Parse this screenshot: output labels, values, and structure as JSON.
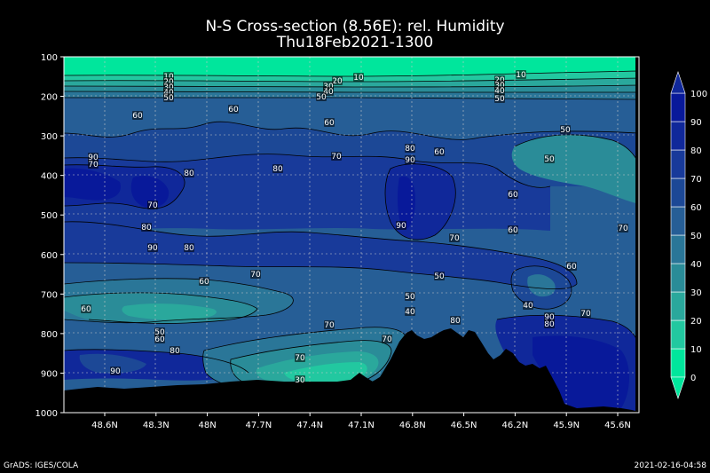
{
  "chart_data": {
    "type": "heatmap",
    "title": "N-S Cross-section (8.56E): rel. Humidity",
    "subtitle": "Thu18Feb2021-1300",
    "x_ticks": [
      "48.6N",
      "48.3N",
      "48N",
      "47.7N",
      "47.4N",
      "47.1N",
      "46.8N",
      "46.5N",
      "46.2N",
      "45.9N",
      "45.6N"
    ],
    "y_ticks": [
      "100",
      "200",
      "300",
      "400",
      "500",
      "600",
      "700",
      "800",
      "900",
      "1000"
    ],
    "ylim": [
      1000,
      100
    ],
    "grid": true,
    "colorbar": {
      "levels": [
        "0",
        "10",
        "20",
        "30",
        "40",
        "50",
        "60",
        "70",
        "80",
        "90",
        "100"
      ],
      "colors": [
        "#00e69c",
        "#22c8a0",
        "#2aa89c",
        "#2a8c98",
        "#2a7698",
        "#265e96",
        "#1c4896",
        "#183a9a",
        "#10289a",
        "#08199a"
      ]
    },
    "contour_labels": [
      "10",
      "20",
      "30",
      "40",
      "50",
      "20",
      "30",
      "40",
      "50",
      "10",
      "20",
      "30",
      "40",
      "50",
      "10",
      "60",
      "60",
      "60",
      "50",
      "50",
      "70",
      "80",
      "60",
      "90",
      "70",
      "80",
      "90",
      "80",
      "60",
      "70",
      "90",
      "80",
      "70",
      "60",
      "80",
      "90",
      "70",
      "60",
      "70",
      "50",
      "60",
      "40",
      "60",
      "50",
      "70",
      "80",
      "70",
      "40",
      "50",
      "60",
      "90",
      "80",
      "80",
      "90",
      "70",
      "70",
      "30",
      "40",
      "30"
    ]
  },
  "footer": {
    "left": "GrADS: IGES/COLA",
    "right": "2021-02-16-04:58"
  }
}
